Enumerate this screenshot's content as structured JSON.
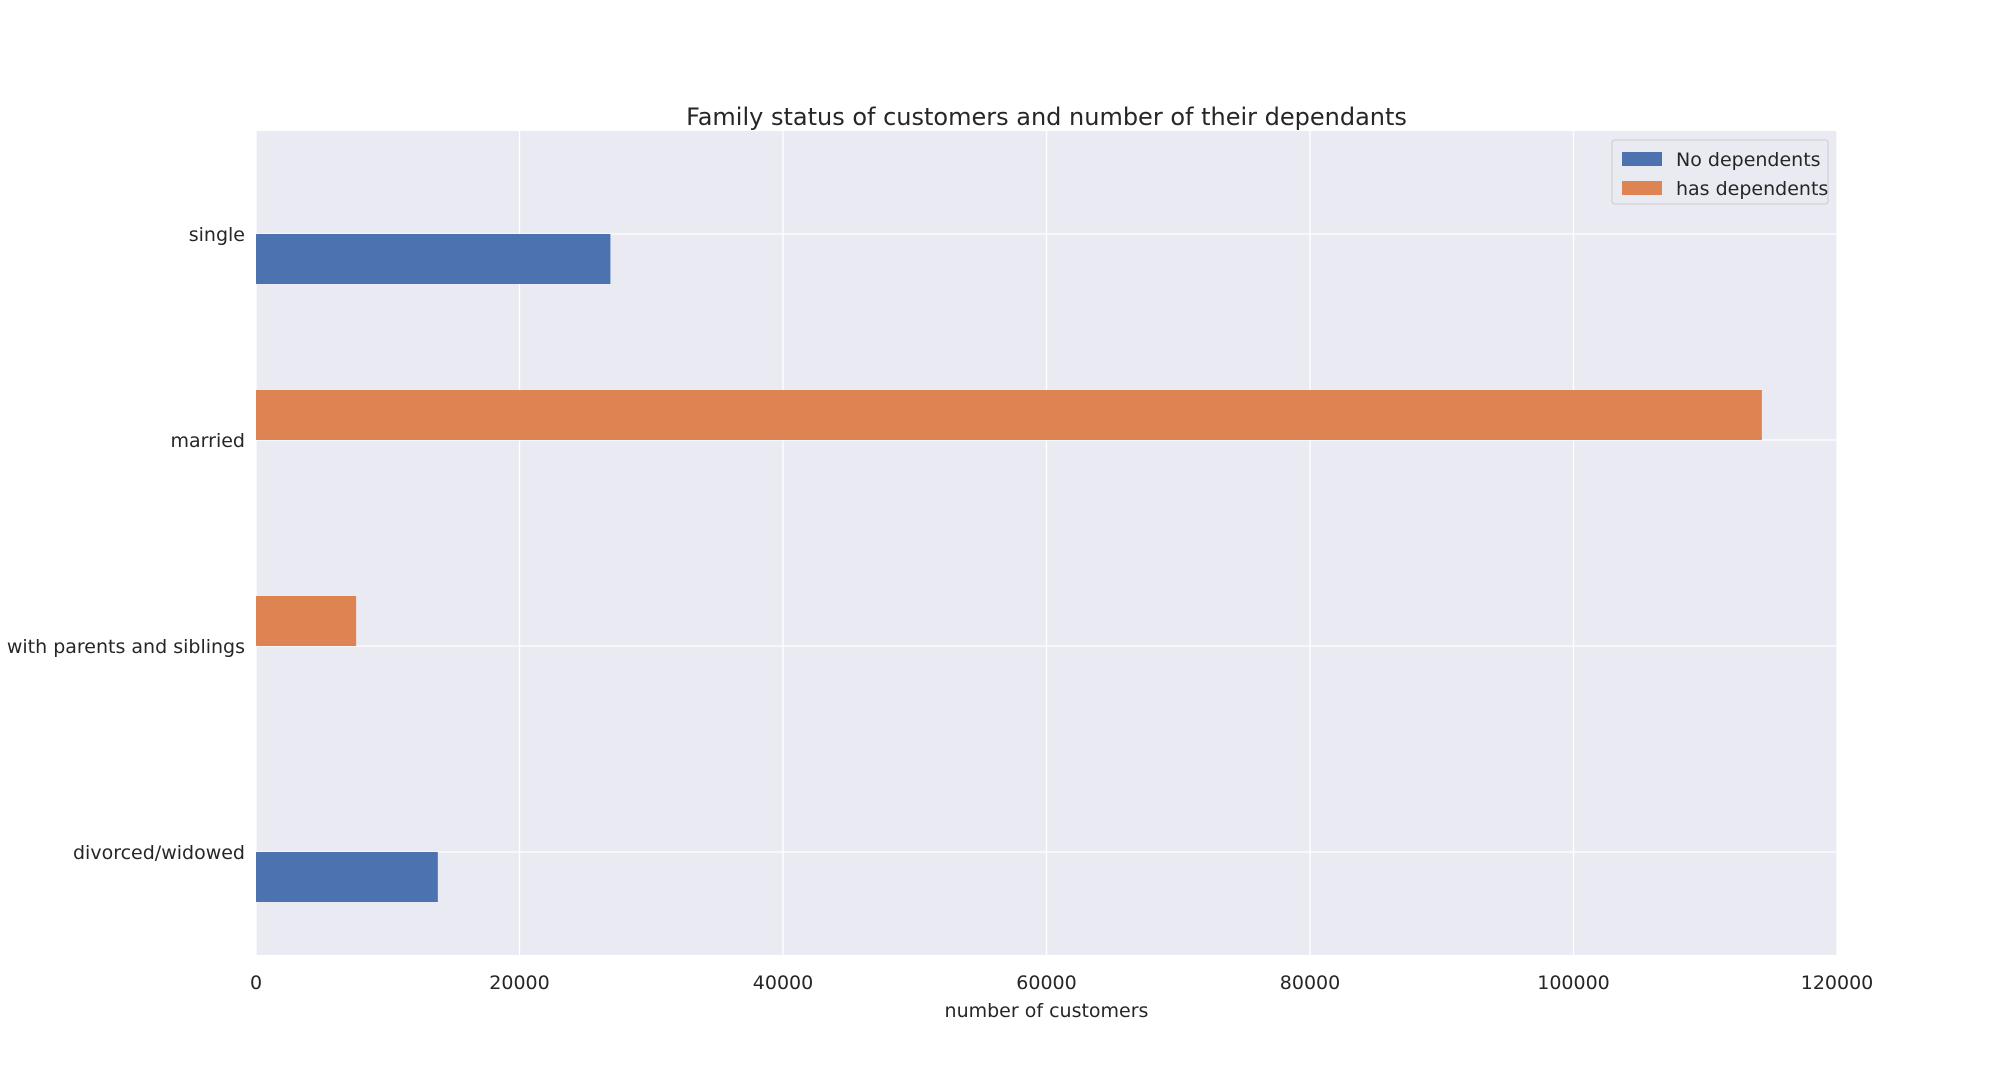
{
  "chart_data": {
    "type": "bar",
    "orientation": "horizontal",
    "title": "Family status of customers and number of their dependants",
    "xlabel": "number of customers",
    "ylabel": "",
    "categories": [
      "divorced/widowed",
      "living with parents and siblings",
      "married",
      "single"
    ],
    "series": [
      {
        "name": "No dependents",
        "color": "#4c72b0",
        "values": [
          13800,
          0,
          0,
          26900
        ]
      },
      {
        "name": "has dependents",
        "color": "#dd8452",
        "values": [
          0,
          7600,
          114300,
          0
        ]
      }
    ],
    "xlim": [
      0,
      120000
    ],
    "xticks": [
      "0",
      "20000",
      "40000",
      "60000",
      "80000",
      "100000",
      "120000"
    ],
    "grid": true,
    "legend_position": "top-right",
    "background": "#eaeaf2"
  }
}
